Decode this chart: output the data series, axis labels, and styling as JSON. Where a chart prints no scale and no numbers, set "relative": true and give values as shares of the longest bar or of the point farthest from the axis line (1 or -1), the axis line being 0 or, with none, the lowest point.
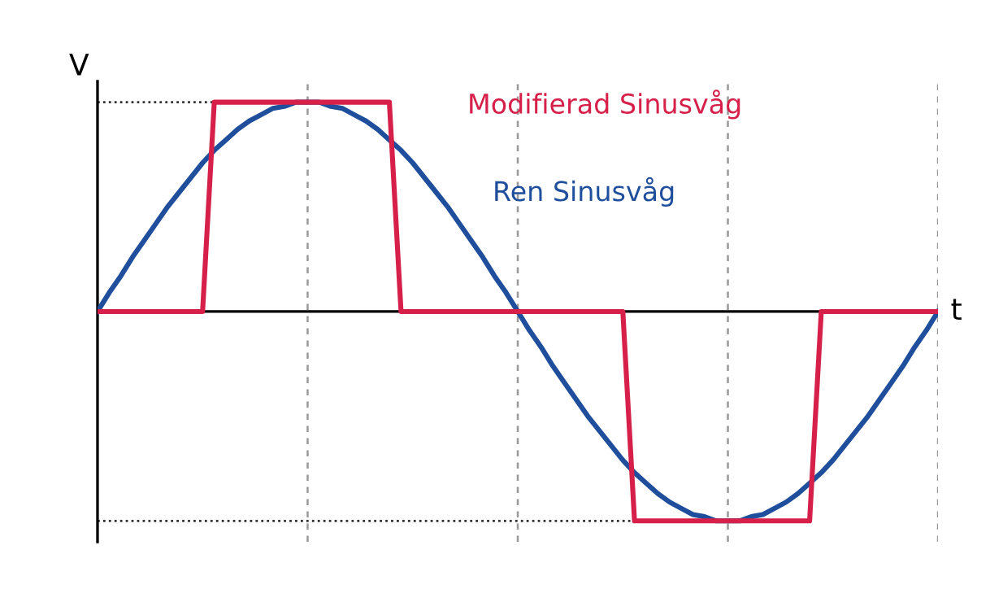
{
  "chart_data": {
    "type": "line",
    "relative": true,
    "xlabel": "t",
    "ylabel": "V",
    "marker": "none",
    "grid": "x",
    "line_style": "solid",
    "categories": [
      null,
      null,
      null,
      null,
      null,
      null,
      null,
      null,
      null,
      null,
      null,
      null,
      null,
      null,
      null,
      null,
      null,
      null,
      null,
      null,
      null,
      null,
      null,
      null,
      null,
      null,
      null,
      null,
      null,
      null,
      null,
      null,
      null,
      null,
      null,
      null,
      null,
      null,
      null,
      null,
      null,
      null,
      null,
      null,
      null,
      null,
      null,
      null,
      null,
      null,
      null,
      null,
      null,
      null,
      null,
      null,
      null,
      null,
      null,
      null,
      null,
      null,
      null,
      null,
      null,
      null,
      null,
      null,
      null,
      null,
      null,
      null,
      null
    ],
    "series": [
      {
        "name": "Modifierad Sinusvåg",
        "color": "#d6204a",
        "values": [
          0,
          0,
          0,
          0,
          0,
          0,
          0,
          0,
          0,
          0,
          1,
          1,
          1,
          1,
          1,
          1,
          1,
          1,
          1,
          1,
          1,
          1,
          1,
          1,
          1,
          1,
          0,
          0,
          0,
          0,
          0,
          0,
          0,
          0,
          0,
          0,
          0,
          0,
          0,
          0,
          0,
          0,
          0,
          0,
          0,
          0,
          -1,
          -1,
          -1,
          -1,
          -1,
          -1,
          -1,
          -1,
          -1,
          -1,
          -1,
          -1,
          -1,
          -1,
          -1,
          -1,
          0,
          0,
          0,
          0,
          0,
          0,
          0,
          0,
          0,
          0,
          0
        ]
      },
      {
        "name": "Ren Sinusvåg",
        "color": "#1f4f9c",
        "values": [
          0,
          0.09,
          0.17,
          0.26,
          0.34,
          0.42,
          0.5,
          0.57,
          0.64,
          0.71,
          0.77,
          0.82,
          0.87,
          0.91,
          0.94,
          0.97,
          0.98,
          1,
          1,
          1,
          0.98,
          0.97,
          0.94,
          0.91,
          0.87,
          0.82,
          0.77,
          0.71,
          0.64,
          0.57,
          0.5,
          0.42,
          0.34,
          0.26,
          0.17,
          0.09,
          0,
          -0.09,
          -0.17,
          -0.26,
          -0.34,
          -0.42,
          -0.5,
          -0.57,
          -0.64,
          -0.71,
          -0.77,
          -0.82,
          -0.87,
          -0.91,
          -0.94,
          -0.97,
          -0.98,
          -1,
          -1,
          -1,
          -0.98,
          -0.97,
          -0.94,
          -0.91,
          -0.87,
          -0.82,
          -0.77,
          -0.71,
          -0.64,
          -0.57,
          -0.5,
          -0.42,
          -0.34,
          -0.26,
          -0.17,
          -0.09,
          0
        ]
      }
    ],
    "ref_lines": [
      {
        "axis": "y",
        "value": 1,
        "color": "#333333",
        "line_style": "dotted"
      },
      {
        "axis": "y",
        "value": -1,
        "color": "#333333",
        "line_style": "dotted"
      }
    ]
  }
}
